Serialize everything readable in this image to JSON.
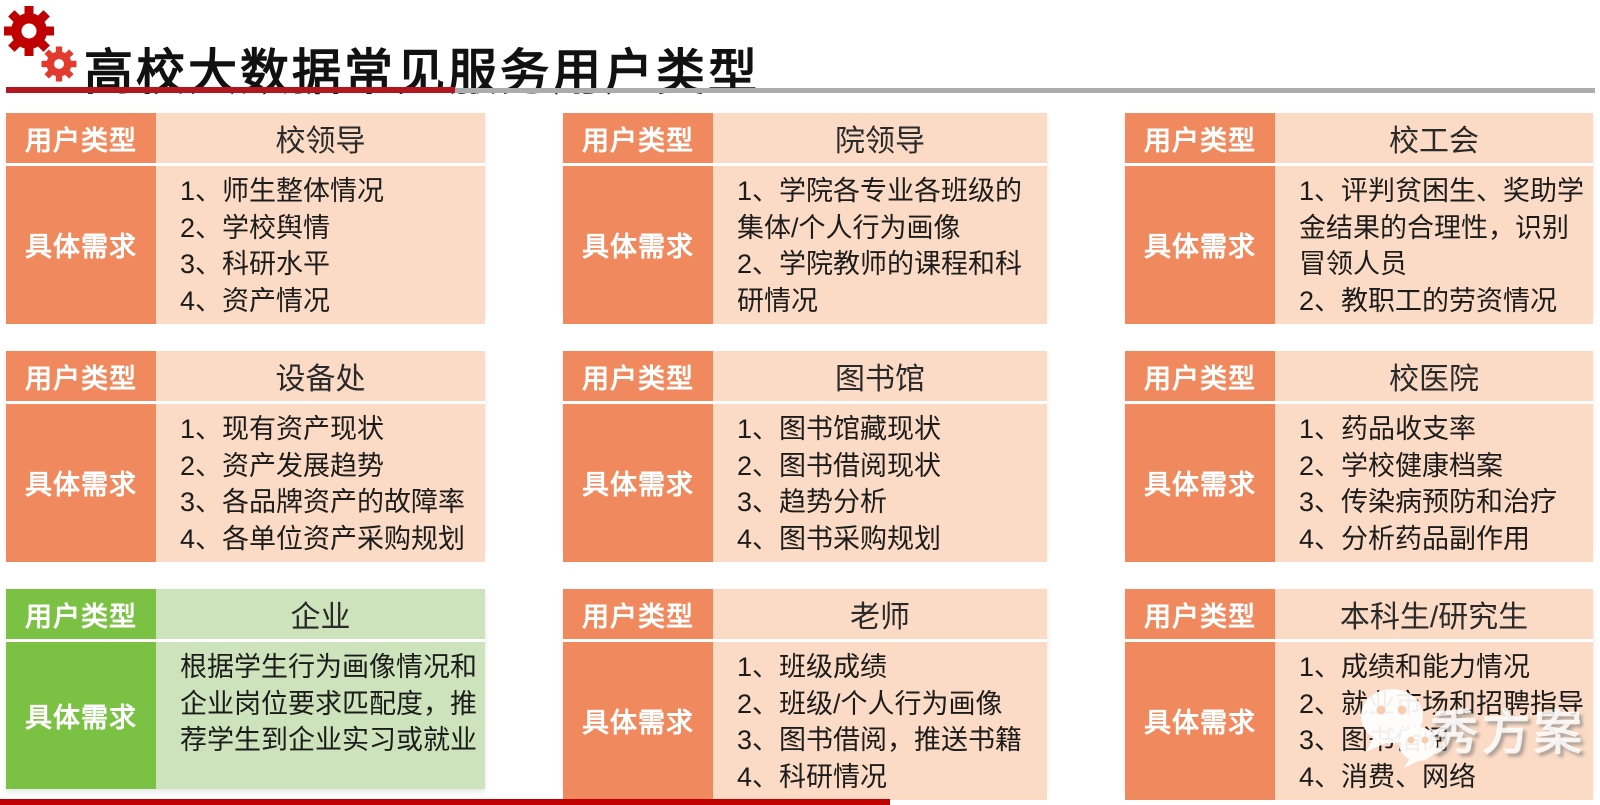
{
  "slide": {
    "title": "高校大数据常见服务用户类型",
    "row_labels": {
      "user_type": "用户类型",
      "needs": "具体需求"
    }
  },
  "watermark": {
    "text": "秀方案",
    "icon": "wechat-icon"
  },
  "colors": {
    "title_text": "#111111",
    "accent_red_rule": "#B2161E",
    "gray_rule": "#ACACAC",
    "bottom_red_rule": "#C00000",
    "orange_label": "#F1895E",
    "orange_body": "#FBDBC5",
    "green_label": "#7BC144",
    "green_body": "#CCE3BB",
    "gear_dark_red": "#C00000",
    "gear_bright_red": "#E23B2E"
  },
  "cards": [
    {
      "user_type": "校领导",
      "variant": "orange",
      "needs": [
        "1、师生整体情况",
        "2、学校舆情",
        "3、科研水平",
        "4、资产情况"
      ]
    },
    {
      "user_type": "院领导",
      "variant": "orange",
      "needs": [
        "1、学院各专业各班级的集体/个人行为画像",
        "2、学院教师的课程和科研情况"
      ]
    },
    {
      "user_type": "校工会",
      "variant": "orange",
      "needs": [
        "1、评判贫困生、奖助学金结果的合理性，识别冒领人员",
        "2、教职工的劳资情况"
      ]
    },
    {
      "user_type": "设备处",
      "variant": "orange",
      "needs": [
        "1、现有资产现状",
        "2、资产发展趋势",
        "3、各品牌资产的故障率",
        "4、各单位资产采购规划"
      ]
    },
    {
      "user_type": "图书馆",
      "variant": "orange",
      "needs": [
        "1、图书馆藏现状",
        "2、图书借阅现状",
        "3、趋势分析",
        "4、图书采购规划"
      ]
    },
    {
      "user_type": "校医院",
      "variant": "orange",
      "needs": [
        "1、药品收支率",
        "2、学校健康档案",
        "3、传染病预防和治疗",
        "4、分析药品副作用"
      ]
    },
    {
      "user_type": "企业",
      "variant": "green",
      "needs": [
        "根据学生行为画像情况和企业岗位要求匹配度，推荐学生到企业实习或就业"
      ]
    },
    {
      "user_type": "老师",
      "variant": "orange",
      "needs": [
        "1、班级成绩",
        "2、班级/个人行为画像",
        "3、图书借阅，推送书籍",
        "4、科研情况"
      ]
    },
    {
      "user_type": "本科生/研究生",
      "variant": "orange",
      "needs": [
        "1、成绩和能力情况",
        "2、就业市场和招聘指导",
        "3、图书借阅",
        "4、消费、网络"
      ]
    }
  ]
}
